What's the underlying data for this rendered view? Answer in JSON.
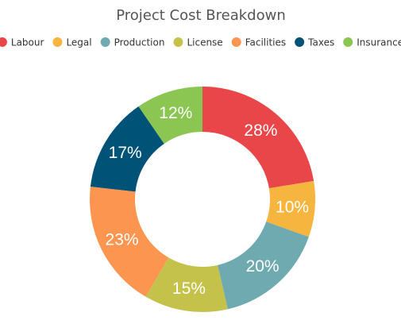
{
  "chart_data": {
    "type": "donut",
    "title": "Project Cost Breakdown",
    "categories": [
      "Labour",
      "Legal",
      "Production",
      "License",
      "Facilities",
      "Taxes",
      "Insurance"
    ],
    "values": [
      28,
      10,
      20,
      15,
      23,
      17,
      12
    ],
    "value_labels": [
      "28%",
      "10%",
      "20%",
      "15%",
      "23%",
      "17%",
      "12%"
    ],
    "colors": [
      "#e94649",
      "#f6b53f",
      "#6faab0",
      "#c4c24a",
      "#fb954f",
      "#005277",
      "#8bc652"
    ],
    "legend": "top"
  }
}
